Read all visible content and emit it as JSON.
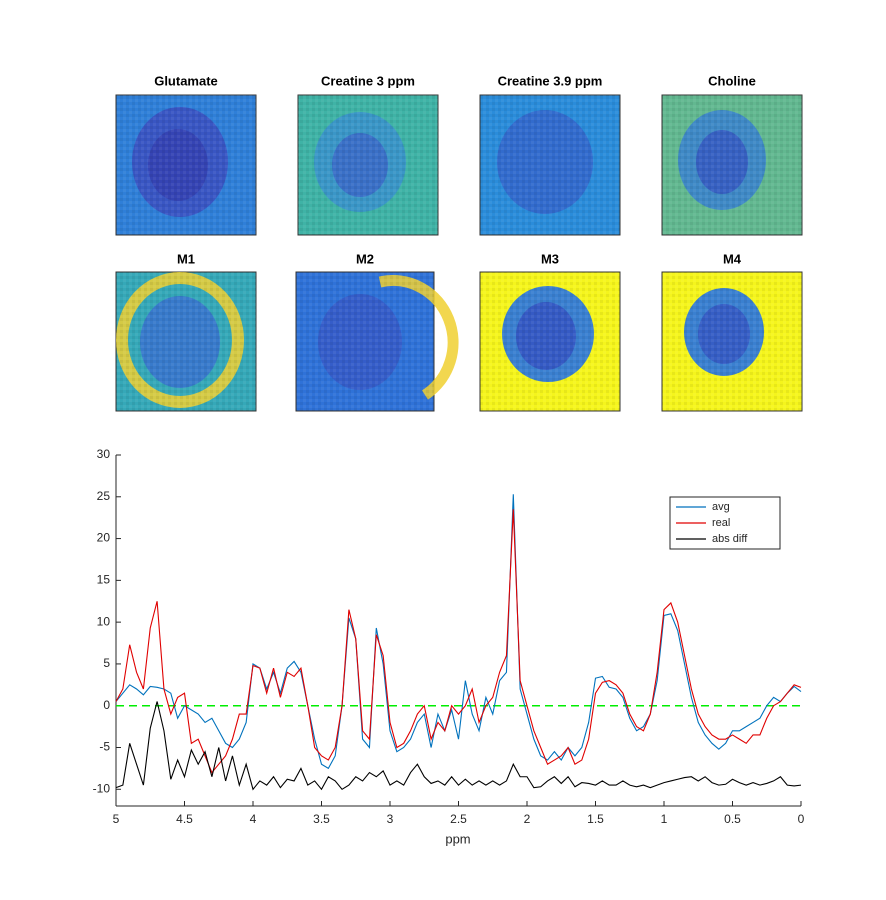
{
  "images": {
    "titles": [
      "Glutamate",
      "Creatine 3 ppm",
      "Creatine 3.9 ppm",
      "Choline",
      "M1",
      "M2",
      "M3",
      "M4"
    ]
  },
  "chart_data": {
    "type": "line",
    "xlabel": "ppm",
    "x": [
      5.0,
      4.95,
      4.9,
      4.85,
      4.8,
      4.75,
      4.7,
      4.65,
      4.6,
      4.55,
      4.5,
      4.45,
      4.4,
      4.35,
      4.3,
      4.25,
      4.2,
      4.15,
      4.1,
      4.05,
      4.0,
      3.95,
      3.9,
      3.85,
      3.8,
      3.75,
      3.7,
      3.65,
      3.6,
      3.55,
      3.5,
      3.45,
      3.4,
      3.35,
      3.3,
      3.25,
      3.2,
      3.15,
      3.1,
      3.05,
      3.0,
      2.95,
      2.9,
      2.85,
      2.8,
      2.75,
      2.7,
      2.65,
      2.6,
      2.55,
      2.5,
      2.45,
      2.4,
      2.35,
      2.3,
      2.25,
      2.2,
      2.15,
      2.1,
      2.05,
      2.0,
      1.95,
      1.9,
      1.85,
      1.8,
      1.75,
      1.7,
      1.65,
      1.6,
      1.55,
      1.5,
      1.45,
      1.4,
      1.35,
      1.3,
      1.25,
      1.2,
      1.15,
      1.1,
      1.05,
      1.0,
      0.95,
      0.9,
      0.85,
      0.8,
      0.75,
      0.7,
      0.65,
      0.6,
      0.55,
      0.5,
      0.45,
      0.4,
      0.35,
      0.3,
      0.25,
      0.2,
      0.15,
      0.1,
      0.05,
      0.0
    ],
    "series": [
      {
        "name": "avg",
        "color": "#0072bd",
        "values": [
          0.5,
          1.5,
          2.5,
          2,
          1.3,
          2.3,
          2.2,
          2,
          1.5,
          -1.5,
          0,
          -0.5,
          -1,
          -2,
          -1.5,
          -3,
          -4.5,
          -5,
          -4,
          -2,
          5,
          4.5,
          2,
          4,
          1.5,
          4.5,
          5.3,
          4,
          0,
          -4,
          -7,
          -7.5,
          -6,
          0,
          10.5,
          8,
          -4,
          -5,
          9.3,
          5,
          -3,
          -5.5,
          -5,
          -4,
          -2,
          -1,
          -5,
          -1,
          -3,
          -0.5,
          -4,
          3,
          -1,
          -3,
          1,
          -1,
          3,
          4,
          25.3,
          2,
          -1,
          -4,
          -6,
          -6.5,
          -5.5,
          -6.5,
          -5,
          -6,
          -5,
          -2,
          3.3,
          3.5,
          2.2,
          2,
          1,
          -1.5,
          -3,
          -2.5,
          -1,
          3,
          10.8,
          11,
          9,
          5,
          1,
          -2,
          -3.5,
          -4.5,
          -5.2,
          -4.5,
          -3,
          -3,
          -2.5,
          -2,
          -1.5,
          0,
          1,
          0.5,
          1.5,
          2.3,
          1.7
        ]
      },
      {
        "name": "real",
        "color": "#e00000",
        "values": [
          0.5,
          2,
          7.3,
          4,
          2,
          9.3,
          12.5,
          2,
          -1,
          1,
          1.5,
          -4.5,
          -4,
          -6,
          -8,
          -7,
          -6,
          -4,
          -1,
          -1,
          4.8,
          4.5,
          1.5,
          4.5,
          1,
          4,
          3.5,
          4.5,
          0,
          -5,
          -6,
          -6.5,
          -5,
          0,
          11.5,
          8,
          -3,
          -4,
          8.5,
          6,
          -2,
          -5,
          -4.5,
          -3,
          -1,
          0,
          -4,
          -2,
          -3,
          0,
          -1,
          0,
          2,
          -2,
          0,
          1,
          4,
          6,
          23.5,
          3,
          0,
          -3,
          -5,
          -7,
          -6.5,
          -6,
          -5,
          -7,
          -6.5,
          -4,
          1.5,
          2.8,
          3,
          2.5,
          1.5,
          -1,
          -2.5,
          -3,
          -1,
          4,
          11.5,
          12.3,
          10,
          6,
          2,
          -1,
          -2.5,
          -3.5,
          -4,
          -4,
          -3.5,
          -4,
          -4.5,
          -3.5,
          -3.5,
          -1.5,
          0,
          0.5,
          1.5,
          2.5,
          2.2
        ]
      },
      {
        "name": "abs diff",
        "color": "#000000",
        "values": [
          -9.8,
          -9.5,
          -4.5,
          -7,
          -9.5,
          -2.7,
          0.5,
          -3,
          -8.8,
          -6.5,
          -8.5,
          -5.3,
          -7,
          -5.5,
          -8.5,
          -5,
          -9,
          -6,
          -9.5,
          -7,
          -10,
          -9,
          -9.5,
          -8.5,
          -9.8,
          -8.8,
          -9,
          -7.5,
          -9.5,
          -9,
          -10,
          -8.5,
          -9,
          -10,
          -9.5,
          -8.5,
          -9,
          -8,
          -8.5,
          -7.8,
          -9.5,
          -9,
          -9.5,
          -8,
          -7,
          -8.5,
          -9.3,
          -9,
          -9.5,
          -8.5,
          -9.5,
          -8.8,
          -9.5,
          -9,
          -9.5,
          -9,
          -9.5,
          -9,
          -7,
          -8.5,
          -8.5,
          -9.8,
          -9.7,
          -9,
          -8.5,
          -9.3,
          -8.5,
          -9.7,
          -9.2,
          -9.3,
          -9.5,
          -9,
          -9.5,
          -9.5,
          -9,
          -9.5,
          -9.7,
          -9.5,
          -9.8,
          -9.5,
          -9.2,
          -9,
          -8.8,
          -8.6,
          -8.5,
          -9,
          -8.5,
          -9.2,
          -9.5,
          -9.4,
          -8.8,
          -9.2,
          -9.5,
          -9.2,
          -9.5,
          -9.3,
          -9,
          -8.5,
          -9.5,
          -9.6,
          -9.5
        ]
      }
    ],
    "reference_line": {
      "value": 0,
      "color": "#00ee00"
    },
    "xlim": [
      5,
      0
    ],
    "xticks": [
      5,
      4.5,
      4,
      3.5,
      3,
      2.5,
      2,
      1.5,
      1,
      0.5,
      0
    ],
    "ylim": [
      -12,
      30
    ],
    "yticks": [
      -10,
      -5,
      0,
      5,
      10,
      15,
      20,
      25,
      30
    ],
    "legend": "northeast",
    "grid": false
  }
}
